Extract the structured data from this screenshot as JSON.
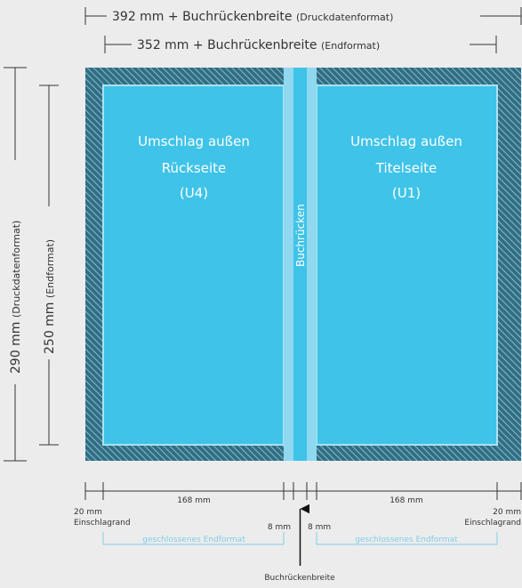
{
  "top_dims": {
    "print": {
      "main": "392 mm + Buchrückenbreite",
      "sub": "(Druckdatenformat)"
    },
    "final": {
      "main": "352 mm + Buchrückenbreite",
      "sub": "(Endformat)"
    }
  },
  "side_dims": {
    "print": {
      "main": "290 mm",
      "sub": "(Druckdatenformat)"
    },
    "final": {
      "main": "250 mm",
      "sub": "(Endformat)"
    }
  },
  "panels": {
    "back": {
      "line1": "Umschlag außen",
      "line2": "Rückseite",
      "line3": "(U4)"
    },
    "front": {
      "line1": "Umschlag außen",
      "line2": "Titelseite",
      "line3": "(U1)"
    },
    "spine": "Buchrücken"
  },
  "bottom_dims": {
    "left_width": "168 mm",
    "right_width": "168 mm",
    "left_margin": {
      "line1": "20 mm",
      "line2": "Einschlagrand"
    },
    "right_margin": {
      "line1": "20 mm",
      "line2": "Einschlagrand"
    },
    "left_spine_gap": "8 mm",
    "right_spine_gap": "8 mm",
    "closed_left": "geschlossenes Endformat",
    "closed_right": "geschlossenes Endformat",
    "spine_width": "Buchrückenbreite"
  },
  "colors": {
    "panel": "#3fc3e8",
    "spine_light": "#8fd8ef",
    "hatch_bg": "#2f6f86",
    "hatch_line": "#8fb8c6",
    "panel_border": "#a9e3f3",
    "closed_label": "#7fd0ea",
    "dim_line": "#333333"
  }
}
